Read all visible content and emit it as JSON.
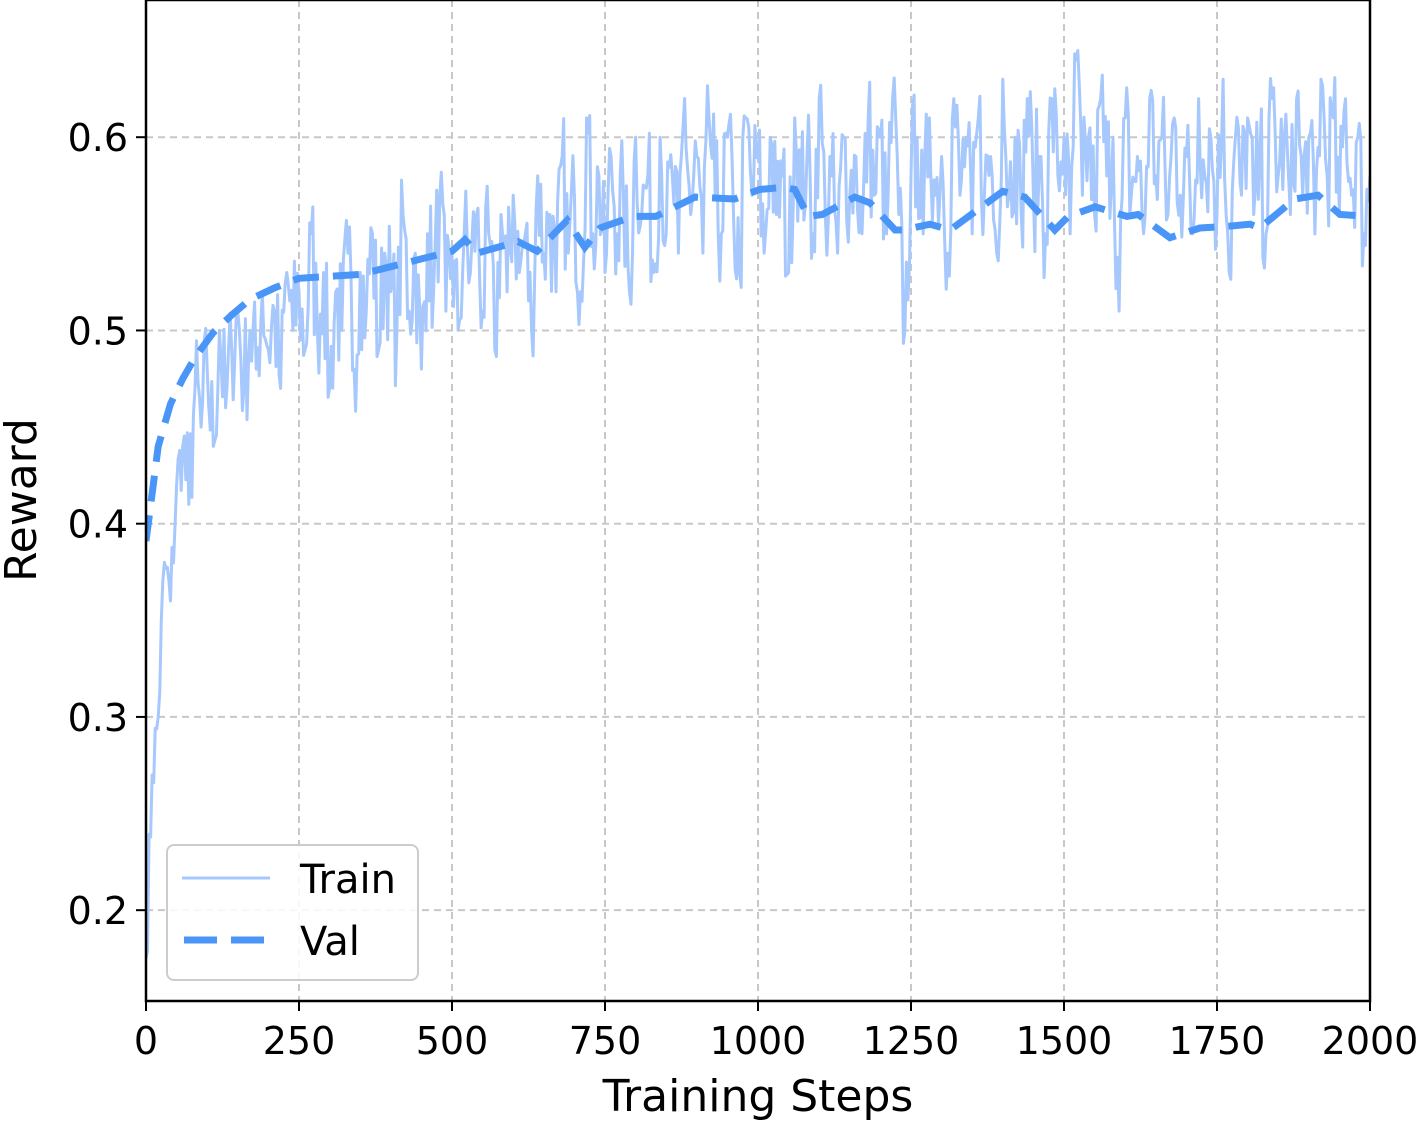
{
  "chart_data": {
    "type": "line",
    "title": "",
    "xlabel": "Training Steps",
    "ylabel": "Reward",
    "xlim": [
      0,
      2000
    ],
    "ylim": [
      0.153,
      0.671
    ],
    "xticks": [
      0,
      250,
      500,
      750,
      1000,
      1250,
      1500,
      1750,
      2000
    ],
    "xtick_labels": [
      "0",
      "250",
      "500",
      "750",
      "1000",
      "1250",
      "1500",
      "1750",
      "2000"
    ],
    "yticks": [
      0.2,
      0.3,
      0.4,
      0.5,
      0.6
    ],
    "ytick_labels": [
      "0.2",
      "0.3",
      "0.4",
      "0.5",
      "0.6"
    ],
    "grid": true,
    "legend_position": "lower left",
    "series": [
      {
        "name": "Train",
        "style": "solid",
        "color": "#a6c8fc",
        "x_step": 10,
        "values": [
          0.175,
          0.27,
          0.3,
          0.38,
          0.36,
          0.42,
          0.44,
          0.41,
          0.47,
          0.45,
          0.48,
          0.44,
          0.5,
          0.46,
          0.49,
          0.51,
          0.47,
          0.5,
          0.48,
          0.52,
          0.49,
          0.51,
          0.47,
          0.53,
          0.5,
          0.52,
          0.49,
          0.55,
          0.5,
          0.53,
          0.47,
          0.52,
          0.5,
          0.54,
          0.48,
          0.53,
          0.51,
          0.55,
          0.49,
          0.54,
          0.52,
          0.5,
          0.56,
          0.51,
          0.54,
          0.48,
          0.55,
          0.52,
          0.57,
          0.51,
          0.54,
          0.5,
          0.55,
          0.53,
          0.56,
          0.51,
          0.55,
          0.49,
          0.56,
          0.52,
          0.57,
          0.53,
          0.55,
          0.5,
          0.58,
          0.54,
          0.56,
          0.52,
          0.59,
          0.54,
          0.57,
          0.52,
          0.61,
          0.55,
          0.58,
          0.53,
          0.59,
          0.55,
          0.57,
          0.52,
          0.6,
          0.56,
          0.58,
          0.53,
          0.6,
          0.55,
          0.58,
          0.54,
          0.62,
          0.56,
          0.59,
          0.54,
          0.61,
          0.57,
          0.55,
          0.6,
          0.56,
          0.53,
          0.61,
          0.57,
          0.59,
          0.54,
          0.6,
          0.56,
          0.58,
          0.53,
          0.61,
          0.57,
          0.59,
          0.55,
          0.62,
          0.56,
          0.58,
          0.54,
          0.6,
          0.57,
          0.59,
          0.55,
          0.61,
          0.57,
          0.6,
          0.55,
          0.62,
          0.56,
          0.5,
          0.58,
          0.6,
          0.55,
          0.61,
          0.57,
          0.59,
          0.54,
          0.62,
          0.57,
          0.6,
          0.55,
          0.61,
          0.57,
          0.59,
          0.54,
          0.63,
          0.57,
          0.6,
          0.56,
          0.62,
          0.57,
          0.59,
          0.55,
          0.62,
          0.58,
          0.6,
          0.55,
          0.64,
          0.57,
          0.6,
          0.56,
          0.62,
          0.58,
          0.6,
          0.51,
          0.61,
          0.57,
          0.59,
          0.55,
          0.62,
          0.58,
          0.6,
          0.56,
          0.61,
          0.57,
          0.59,
          0.55,
          0.62,
          0.58,
          0.6,
          0.56,
          0.63,
          0.53,
          0.6,
          0.57,
          0.61,
          0.56,
          0.59,
          0.55,
          0.62,
          0.58,
          0.6,
          0.56,
          0.62,
          0.57,
          0.6,
          0.55,
          0.63,
          0.58,
          0.61,
          0.56,
          0.62,
          0.57,
          0.6,
          0.55,
          0.58
        ]
      },
      {
        "name": "Val",
        "style": "dashed",
        "color": "#4a96f8",
        "x": [
          0,
          20,
          40,
          60,
          80,
          110,
          140,
          170,
          210,
          250,
          300,
          350,
          400,
          450,
          500,
          521,
          541,
          608,
          639,
          688,
          717,
          742,
          796,
          833,
          897,
          962,
          1003,
          1041,
          1060,
          1082,
          1105,
          1158,
          1183,
          1224,
          1237,
          1281,
          1314,
          1400,
          1436,
          1485,
          1507,
          1551,
          1603,
          1621,
          1673,
          1722,
          1771,
          1804,
          1820,
          1877,
          1915,
          1951,
          2000
        ],
        "values": [
          0.391,
          0.44,
          0.462,
          0.475,
          0.486,
          0.499,
          0.508,
          0.516,
          0.522,
          0.527,
          0.528,
          0.529,
          0.533,
          0.537,
          0.541,
          0.547,
          0.54,
          0.546,
          0.541,
          0.557,
          0.543,
          0.553,
          0.559,
          0.559,
          0.569,
          0.568,
          0.573,
          0.574,
          0.573,
          0.559,
          0.56,
          0.569,
          0.566,
          0.552,
          0.552,
          0.555,
          0.552,
          0.572,
          0.569,
          0.552,
          0.559,
          0.564,
          0.559,
          0.56,
          0.548,
          0.553,
          0.554,
          0.555,
          0.553,
          0.568,
          0.57,
          0.56,
          0.559
        ]
      }
    ]
  },
  "legend": {
    "items": [
      {
        "label": "Train"
      },
      {
        "label": "Val"
      }
    ]
  },
  "axes": {
    "xlabel": "Training Steps",
    "ylabel": "Reward"
  }
}
